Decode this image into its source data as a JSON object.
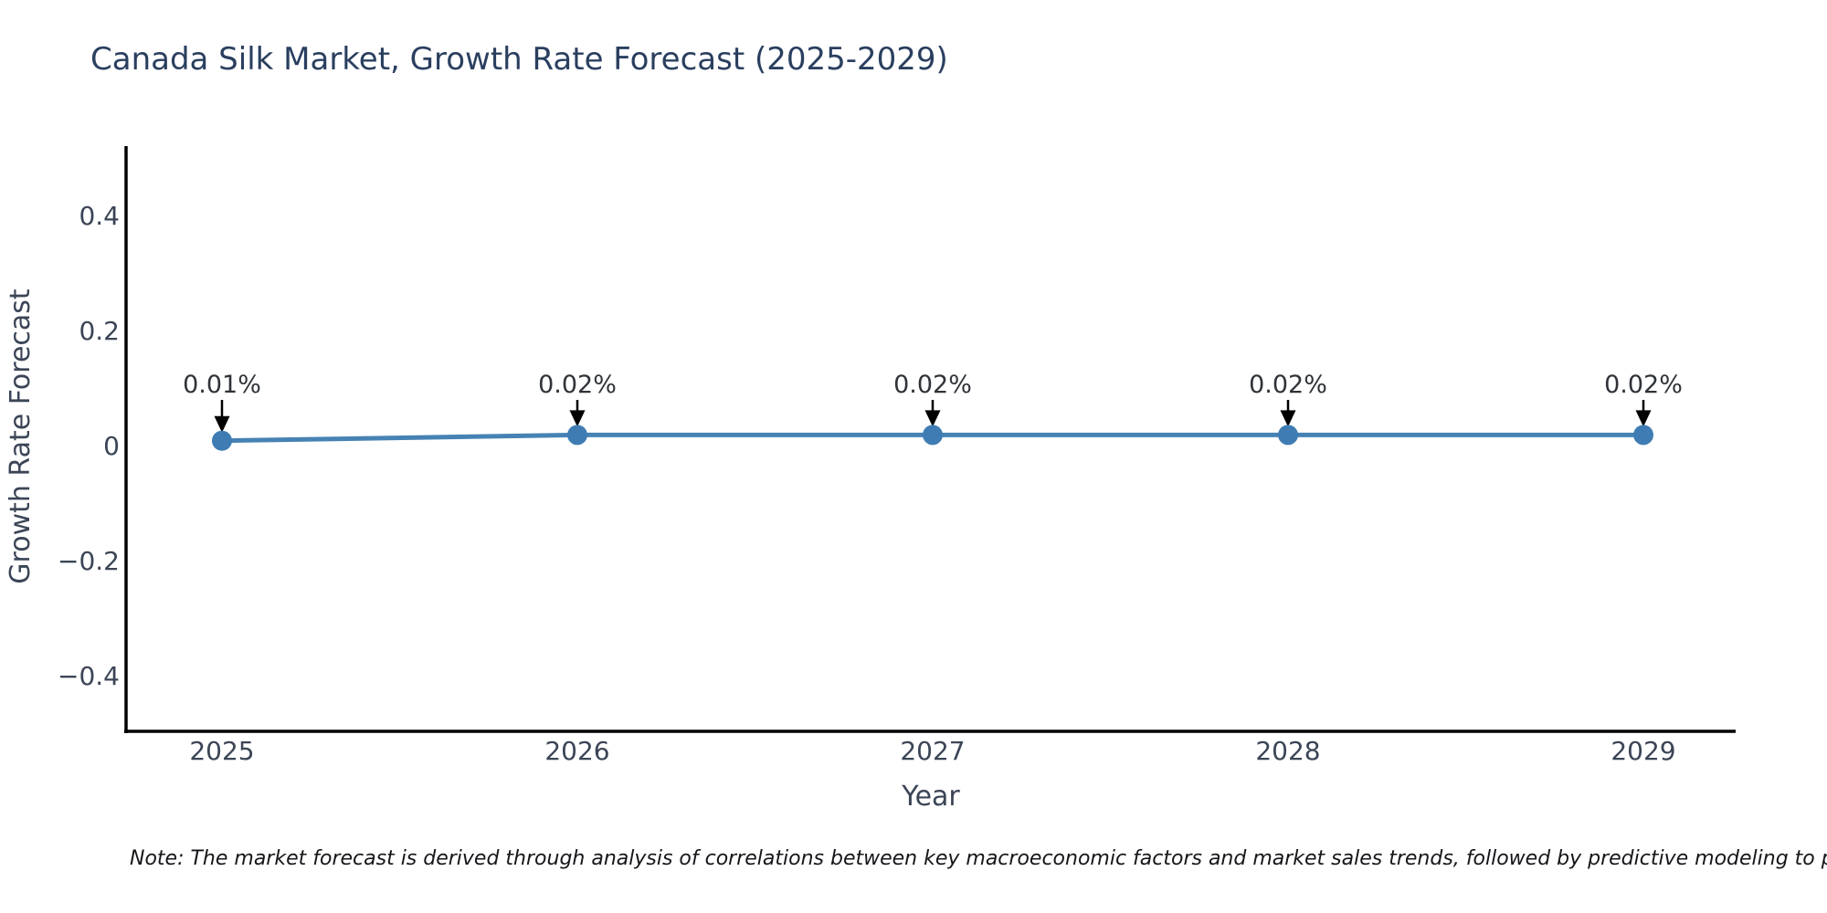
{
  "note": "Note: The market forecast is derived through analysis of correlations between key macroeconomic factors and market sales trends, followed by predictive modeling to project future sa",
  "chart_data": {
    "type": "line",
    "title": "Canada Silk Market, Growth Rate Forecast (2025-2029)",
    "xlabel": "Year",
    "ylabel": "Growth Rate Forecast",
    "x": [
      2025,
      2026,
      2027,
      2028,
      2029
    ],
    "x_tick_labels": [
      "2025",
      "2026",
      "2027",
      "2028",
      "2029"
    ],
    "series": [
      {
        "name": "Growth Rate Forecast",
        "values": [
          0.01,
          0.02,
          0.02,
          0.02,
          0.02
        ]
      }
    ],
    "point_labels": [
      "0.01%",
      "0.02%",
      "0.02%",
      "0.02%",
      "0.02%"
    ],
    "y_ticks": [
      0.4,
      0.2,
      0,
      -0.2,
      -0.4
    ],
    "y_tick_labels": [
      "0.4",
      "0.2",
      "0",
      "−0.2",
      "−0.4"
    ],
    "ylim": [
      -0.52,
      0.52
    ],
    "grid": false,
    "legend": false,
    "annotation_style": "value labels with down arrows pointing at markers",
    "colors": {
      "line": "#4682b4",
      "marker": "#3f7cb3",
      "arrow": "#000000",
      "axis": "#000000",
      "title_text": "#2a3f5f",
      "tick_text": "#3b4556",
      "note_text": "#15161a",
      "background": "#ffffff"
    }
  }
}
